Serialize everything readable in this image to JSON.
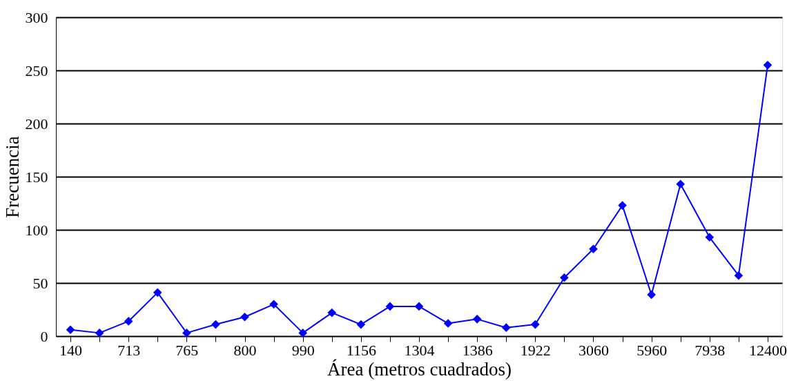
{
  "chart_data": {
    "type": "line",
    "xlabel": "Área (metros cuadrados)",
    "ylabel": "Frecuencia",
    "categories": [
      "140",
      null,
      "713",
      null,
      "765",
      null,
      "800",
      null,
      "990",
      null,
      "1156",
      null,
      "1304",
      null,
      "1386",
      null,
      "1922",
      null,
      "3060",
      null,
      "5960",
      null,
      "7938",
      null,
      "12400"
    ],
    "ylim": [
      0,
      300
    ],
    "yticks": [
      0,
      50,
      100,
      150,
      200,
      250,
      300
    ],
    "grid": "y",
    "marker": "diamond",
    "line_style": "solid",
    "series": [
      {
        "color": "#0000ff",
        "values": [
          6,
          3,
          14,
          41,
          3,
          11,
          18,
          30,
          3,
          22,
          11,
          28,
          28,
          12,
          16,
          8,
          11,
          55,
          82,
          123,
          39,
          143,
          93,
          57,
          255
        ]
      }
    ]
  }
}
